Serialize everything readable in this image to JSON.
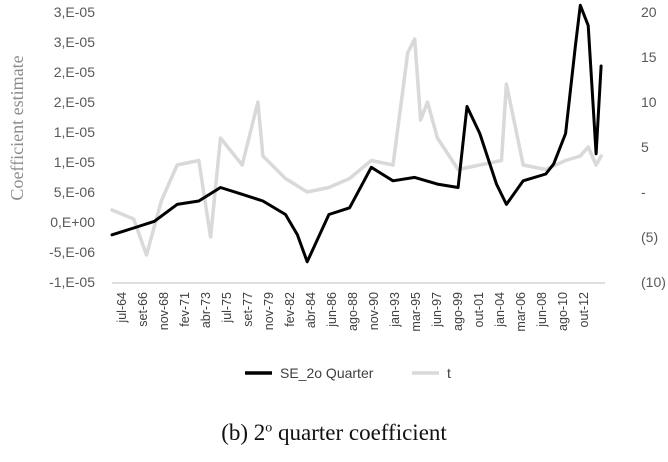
{
  "chart_data": {
    "type": "line",
    "ylabel": "Coefficient estimate",
    "ylim": [
      -1e-05,
      3e-05
    ],
    "y2lim": [
      -10,
      20
    ],
    "left_ticks": [
      "3,E-05",
      "3,E-05",
      "2,E-05",
      "2,E-05",
      "1,E-05",
      "1,E-05",
      "5,E-06",
      "0,E+00",
      "-5,E-06",
      "-1,E-05"
    ],
    "right_ticks": [
      "20",
      "15",
      "10",
      "5",
      "-",
      "(5)",
      "(10)"
    ],
    "categories": [
      "jul-64",
      "set-66",
      "nov-68",
      "fev-71",
      "abr-73",
      "jul-75",
      "set-77",
      "nov-79",
      "fev-82",
      "abr-84",
      "jun-86",
      "ago-88",
      "nov-90",
      "jan-93",
      "mar-95",
      "jun-97",
      "ago-99",
      "out-01",
      "jan-04",
      "mar-06",
      "jun-08",
      "ago-10",
      "out-12"
    ],
    "legend_placement": "bottom",
    "colors": {
      "se": "#000000",
      "t": "#d9d9d9"
    },
    "series": [
      {
        "name": "SE_2o Quarter",
        "axis": "left",
        "x": [
          1964.5,
          1966.7,
          1968.8,
          1971.1,
          1973.3,
          1975.5,
          1977.7,
          1979.8,
          1982.1,
          1983.3,
          1984.3,
          1986.5,
          1988.6,
          1990.8,
          1993.0,
          1995.2,
          1997.5,
          1999.6,
          2000.5,
          2001.8,
          2003.5,
          2004.5,
          2006.2,
          2008.5,
          2009.3,
          2010.5,
          2011.5,
          2012.0,
          2012.8,
          2013.6,
          2014.1
        ],
        "y": [
          -3e-06,
          -2e-06,
          -1e-06,
          1.5e-06,
          2e-06,
          4e-06,
          3e-06,
          2e-06,
          0.0,
          -3e-06,
          -7e-06,
          0.0,
          1e-06,
          7e-06,
          5e-06,
          5.5e-06,
          4.5e-06,
          4e-06,
          1.6e-05,
          1.2e-05,
          4.5e-06,
          1.5e-06,
          5e-06,
          6e-06,
          7.5e-06,
          1.2e-05,
          2.5e-05,
          3.1e-05,
          2.8e-05,
          9e-06,
          2.2e-05
        ]
      },
      {
        "name": "t",
        "axis": "right",
        "x": [
          1964.5,
          1966.7,
          1968.0,
          1969.5,
          1971.1,
          1973.3,
          1974.5,
          1975.5,
          1977.7,
          1979.3,
          1979.8,
          1982.1,
          1984.3,
          1986.5,
          1988.6,
          1990.8,
          1993.0,
          1994.5,
          1995.2,
          1995.8,
          1996.5,
          1997.5,
          1999.6,
          2001.8,
          2004.0,
          2004.5,
          2006.2,
          2008.5,
          2010.5,
          2012.0,
          2012.8,
          2013.6,
          2014.1
        ],
        "y": [
          -2.0,
          -3.0,
          -7.0,
          -1.0,
          3.0,
          3.5,
          -5.0,
          6.0,
          3.0,
          10.0,
          4.0,
          1.5,
          0.0,
          0.5,
          1.5,
          3.5,
          3.0,
          15.5,
          17.0,
          8.0,
          10.0,
          6.0,
          2.5,
          3.0,
          3.5,
          12.0,
          3.0,
          2.5,
          3.5,
          4.0,
          5.0,
          3.0,
          4.0
        ]
      }
    ]
  },
  "caption": {
    "prefix": "(b) 2",
    "superscript": "o",
    "suffix": " quarter coefficient"
  }
}
